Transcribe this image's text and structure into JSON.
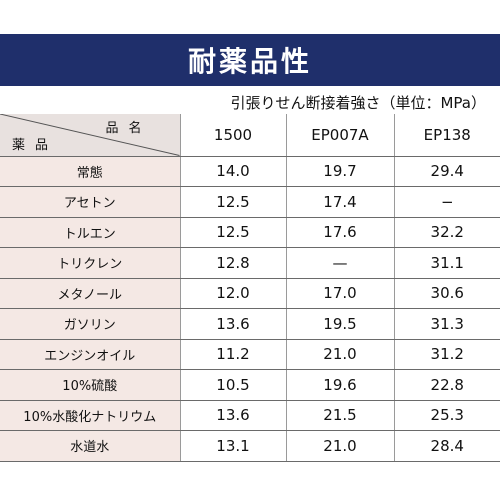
{
  "title": "耐薬品性",
  "unit_note": "引張りせん断接着強さ（単位：MPa）",
  "header": {
    "corner_top": "品名",
    "corner_bottom": "薬品",
    "columns": [
      "1500",
      "EP007A",
      "EP138"
    ]
  },
  "rows": [
    {
      "name": "常態",
      "values": [
        "14.0",
        "19.7",
        "29.4"
      ]
    },
    {
      "name": "アセトン",
      "values": [
        "12.5",
        "17.4",
        "−"
      ]
    },
    {
      "name": "トルエン",
      "values": [
        "12.5",
        "17.6",
        "32.2"
      ]
    },
    {
      "name": "トリクレン",
      "values": [
        "12.8",
        "—",
        "31.1"
      ]
    },
    {
      "name": "メタノール",
      "values": [
        "12.0",
        "17.0",
        "30.6"
      ]
    },
    {
      "name": "ガソリン",
      "values": [
        "13.6",
        "19.5",
        "31.3"
      ]
    },
    {
      "name": "エンジンオイル",
      "values": [
        "11.2",
        "21.0",
        "31.2"
      ]
    },
    {
      "name": "10%硫酸",
      "values": [
        "10.5",
        "19.6",
        "22.8"
      ]
    },
    {
      "name": "10%水酸化ナトリウム",
      "values": [
        "13.6",
        "21.5",
        "25.3"
      ]
    },
    {
      "name": "水道水",
      "values": [
        "13.1",
        "21.0",
        "28.4"
      ]
    }
  ]
}
